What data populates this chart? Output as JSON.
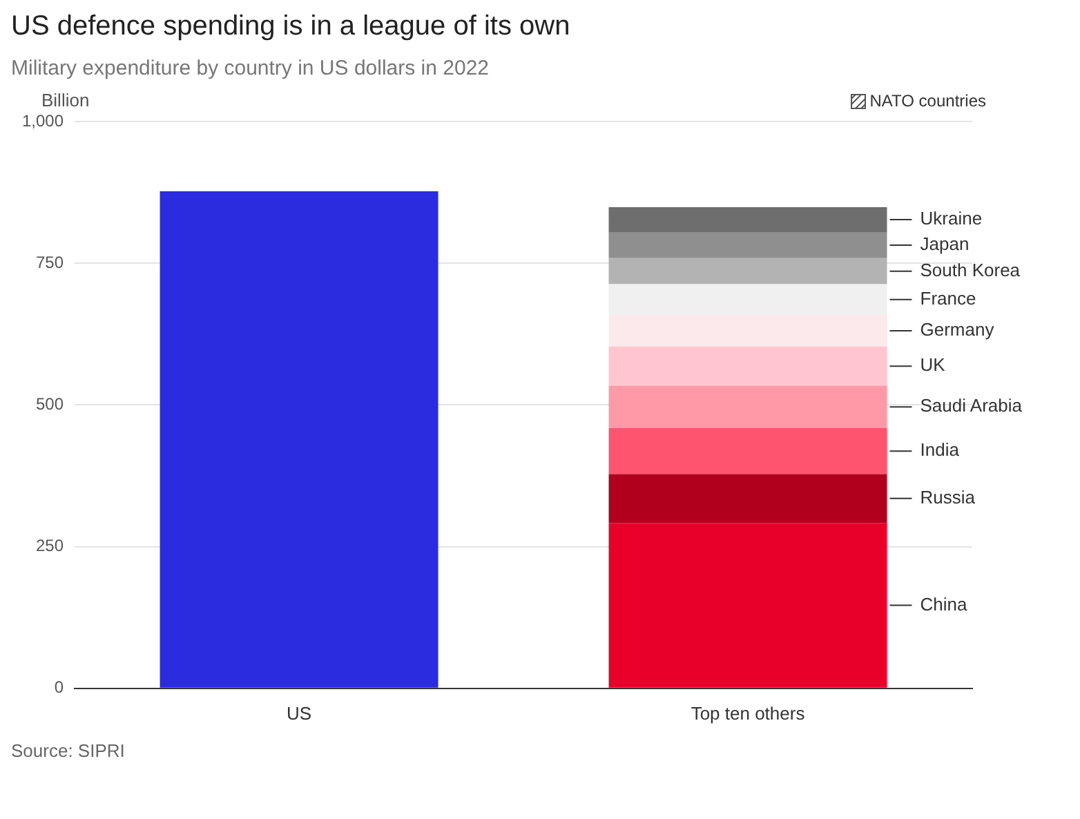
{
  "chart_data": {
    "type": "bar",
    "title": "US defence spending is in a league of its own",
    "subtitle": "Military expenditure by country in US dollars in 2022",
    "ylabel": "Billion",
    "categories": [
      "US",
      "Top ten others"
    ],
    "stacked": true,
    "series": [
      {
        "color": "#2b2be0",
        "values": [
          877,
          null
        ]
      },
      {
        "name": "China",
        "color": "#e8002a",
        "values": [
          null,
          292
        ]
      },
      {
        "name": "Russia",
        "color": "#b0001e",
        "values": [
          null,
          86
        ]
      },
      {
        "name": "India",
        "color": "#ff5470",
        "values": [
          null,
          81
        ]
      },
      {
        "name": "Saudi Arabia",
        "color": "#ff99a8",
        "values": [
          null,
          75
        ]
      },
      {
        "name": "UK",
        "color": "#ffc6cf",
        "values": [
          null,
          69
        ]
      },
      {
        "name": "Germany",
        "color": "#fbe9ec",
        "values": [
          null,
          56
        ]
      },
      {
        "name": "France",
        "color": "#f0f0f0",
        "values": [
          null,
          54
        ]
      },
      {
        "name": "South Korea",
        "color": "#b3b3b3",
        "values": [
          null,
          46
        ]
      },
      {
        "name": "Japan",
        "color": "#8f8f8f",
        "values": [
          null,
          46
        ]
      },
      {
        "name": "Ukraine",
        "color": "#6e6e6e",
        "values": [
          null,
          44
        ]
      }
    ],
    "ylim": [
      0,
      1000
    ],
    "yticks": [
      0,
      250,
      500,
      750,
      {
        "value": 1000,
        "label": "1,000"
      }
    ],
    "grid": "y",
    "annotations": [
      "NATO countries",
      "Source: SIPRI"
    ]
  }
}
